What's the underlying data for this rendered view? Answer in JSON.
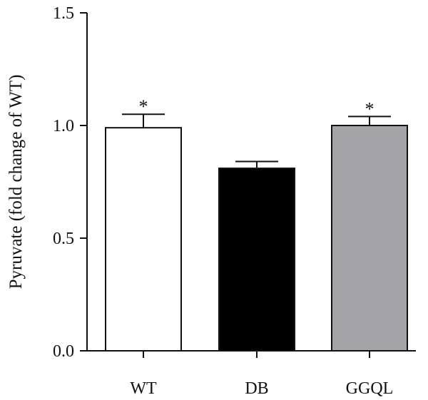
{
  "chart_data": {
    "type": "bar",
    "title": "",
    "xlabel": "",
    "ylabel": "Pyruvate (fold change of WT)",
    "ylim": [
      0,
      1.5
    ],
    "yticks": [
      0.0,
      0.5,
      1.0,
      1.5
    ],
    "ytick_labels": [
      "0.0",
      "0.5",
      "1.0",
      "1.5"
    ],
    "grid": false,
    "categories": [
      "WT",
      "DB",
      "GGQL"
    ],
    "values": [
      0.99,
      0.81,
      1.0
    ],
    "error": [
      0.06,
      0.03,
      0.04
    ],
    "colors": [
      "#ffffff",
      "#000000",
      "#a3a3a8"
    ],
    "annotations": [
      "*",
      "",
      "*"
    ]
  }
}
